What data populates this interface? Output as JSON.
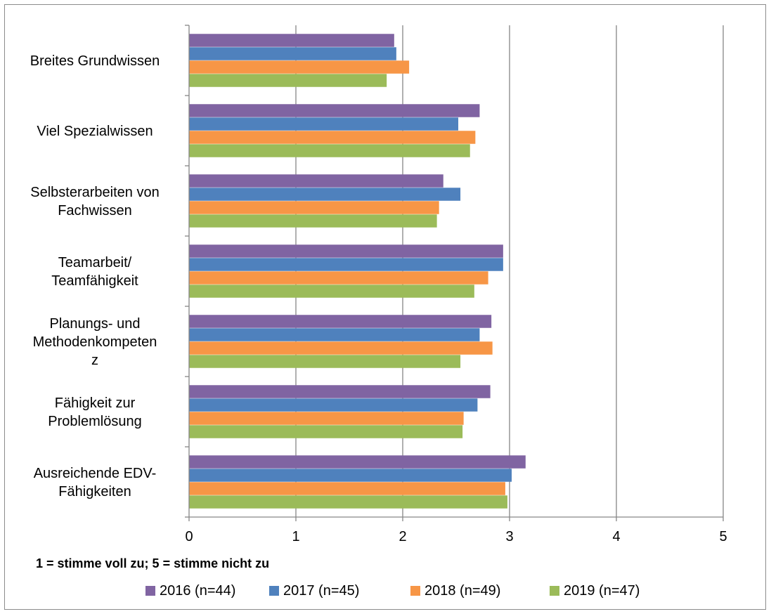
{
  "chart_data": {
    "type": "bar",
    "orientation": "horizontal",
    "categories": [
      "Breites Grundwissen",
      "Viel Spezialwissen",
      "Selbsterarbeiten von Fachwissen",
      "Teamarbeit/ Teamfähigkeit",
      "Planungs- und Methodenkompetenz",
      "Fähigkeit zur Problemlösung",
      "Ausreichende EDV-Fähigkeiten"
    ],
    "category_label_lines": [
      [
        "Breites Grundwissen"
      ],
      [
        "Viel Spezialwissen"
      ],
      [
        "Selbsterarbeiten von",
        "Fachwissen"
      ],
      [
        "Teamarbeit/",
        "Teamfähigkeit"
      ],
      [
        "Planungs- und",
        "Methodenkompeten",
        "z"
      ],
      [
        "Fähigkeit zur",
        "Problemlösung"
      ],
      [
        "Ausreichende EDV-",
        "Fähigkeiten"
      ]
    ],
    "series": [
      {
        "name": "2016 (n=44)",
        "color": "#8064a2",
        "values": [
          1.92,
          2.72,
          2.38,
          2.94,
          2.83,
          2.82,
          3.15
        ]
      },
      {
        "name": "2017 (n=45)",
        "color": "#4f81bd",
        "values": [
          1.94,
          2.52,
          2.54,
          2.94,
          2.72,
          2.7,
          3.02
        ]
      },
      {
        "name": "2018 (n=49)",
        "color": "#f79646",
        "values": [
          2.06,
          2.68,
          2.34,
          2.8,
          2.84,
          2.57,
          2.96
        ]
      },
      {
        "name": "2019 (n=47)",
        "color": "#9bbb59",
        "values": [
          1.85,
          2.63,
          2.32,
          2.67,
          2.54,
          2.56,
          2.98
        ]
      }
    ],
    "xlim": [
      0,
      5
    ],
    "xticks": [
      0,
      1,
      2,
      3,
      4,
      5
    ],
    "xlabel": "",
    "ylabel": "",
    "title": "",
    "note": "1 = stimme voll zu;  5 = stimme nicht zu",
    "grid": true,
    "legend_position": "bottom"
  }
}
